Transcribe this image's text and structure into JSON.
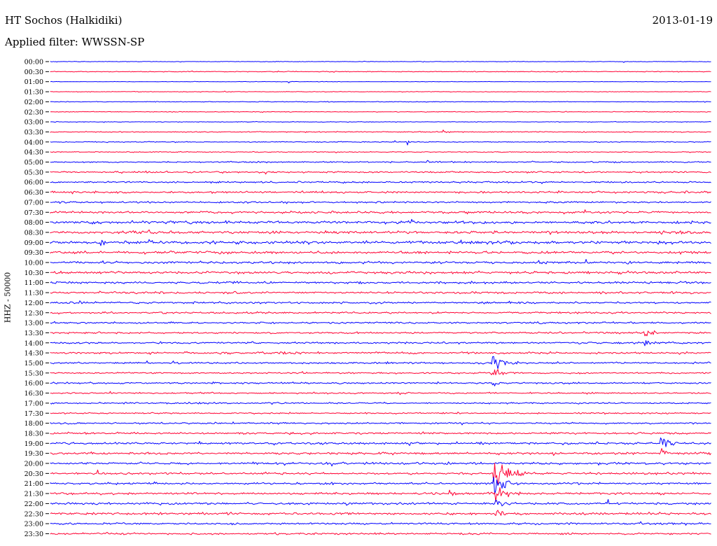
{
  "header": {
    "station": "HT Sochos (Halkidiki)",
    "date": "2013-01-19",
    "filter": "Applied filter: WWSSN-SP"
  },
  "axis": {
    "channel_label": "HHZ - 50000"
  },
  "colors": {
    "even_trace": "#0000ff",
    "odd_trace": "#ff0033",
    "background": "#ffffff"
  },
  "traces": [
    {
      "time": "00:00"
    },
    {
      "time": "00:30"
    },
    {
      "time": "01:00"
    },
    {
      "time": "01:30"
    },
    {
      "time": "02:00"
    },
    {
      "time": "02:30"
    },
    {
      "time": "03:00"
    },
    {
      "time": "03:30"
    },
    {
      "time": "04:00"
    },
    {
      "time": "04:30"
    },
    {
      "time": "05:00"
    },
    {
      "time": "05:30"
    },
    {
      "time": "06:00"
    },
    {
      "time": "06:30"
    },
    {
      "time": "07:00"
    },
    {
      "time": "07:30"
    },
    {
      "time": "08:00"
    },
    {
      "time": "08:30"
    },
    {
      "time": "09:00"
    },
    {
      "time": "09:30"
    },
    {
      "time": "10:00"
    },
    {
      "time": "10:30"
    },
    {
      "time": "11:00"
    },
    {
      "time": "11:30"
    },
    {
      "time": "12:00"
    },
    {
      "time": "12:30"
    },
    {
      "time": "13:00"
    },
    {
      "time": "13:30"
    },
    {
      "time": "14:00"
    },
    {
      "time": "14:30"
    },
    {
      "time": "15:00"
    },
    {
      "time": "15:30"
    },
    {
      "time": "16:00"
    },
    {
      "time": "16:30"
    },
    {
      "time": "17:00"
    },
    {
      "time": "17:30"
    },
    {
      "time": "18:00"
    },
    {
      "time": "18:30"
    },
    {
      "time": "19:00"
    },
    {
      "time": "19:30"
    },
    {
      "time": "20:00"
    },
    {
      "time": "20:30"
    },
    {
      "time": "21:00"
    },
    {
      "time": "21:30"
    },
    {
      "time": "22:00"
    },
    {
      "time": "22:30"
    },
    {
      "time": "23:00"
    },
    {
      "time": "23:30"
    }
  ]
}
